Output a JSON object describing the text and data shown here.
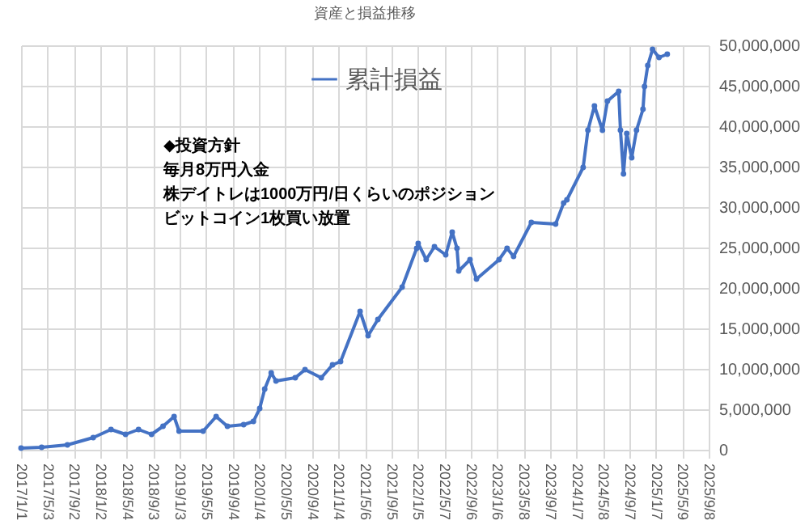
{
  "chart_data": {
    "type": "line",
    "title": "資産と損益推移",
    "annotations": [
      "◆投資方針",
      "毎月8万円入金",
      "株デイトレは1000万円/日くらいのポジション",
      "ビットコイン1枚買い放置"
    ],
    "x": [
      "2017-01-01",
      "2017-04-06",
      "2017-08-03",
      "2017-11-30",
      "2018-02-20",
      "2018-04-28",
      "2018-06-27",
      "2018-08-26",
      "2018-10-18",
      "2018-12-08",
      "2018-12-31",
      "2019-04-21",
      "2019-06-20",
      "2019-08-11",
      "2019-10-25",
      "2019-12-09",
      "2020-01-07",
      "2020-01-30",
      "2020-02-29",
      "2020-03-22",
      "2020-06-19",
      "2020-08-03",
      "2020-10-17",
      "2020-12-08",
      "2021-01-14",
      "2021-04-14",
      "2021-05-21",
      "2021-07-05",
      "2021-10-25",
      "2021-12-31",
      "2022-01-07",
      "2022-02-13",
      "2022-03-23",
      "2022-05-14",
      "2022-06-13",
      "2022-07-05",
      "2022-07-13",
      "2022-09-03",
      "2022-10-03",
      "2023-01-15",
      "2023-02-21",
      "2023-03-23",
      "2023-06-13",
      "2023-10-03",
      "2023-11-09",
      "2023-11-24",
      "2024-02-07",
      "2024-02-29",
      "2024-03-30",
      "2024-05-06",
      "2024-05-29",
      "2024-07-20",
      "2024-07-28",
      "2024-08-11",
      "2024-08-26",
      "2024-09-18",
      "2024-10-10",
      "2024-11-09",
      "2024-11-16",
      "2024-12-01",
      "2024-12-23",
      "2025-01-22",
      "2025-03-01"
    ],
    "series": [
      {
        "name": "累計損益",
        "color": "#4472c4",
        "values": [
          200000,
          300000,
          600000,
          1500000,
          2500000,
          1900000,
          2500000,
          1900000,
          2900000,
          4100000,
          2300000,
          2300000,
          4100000,
          2900000,
          3100000,
          3500000,
          5100000,
          7500000,
          9500000,
          8500000,
          8900000,
          9900000,
          8900000,
          10500000,
          10900000,
          17100000,
          14100000,
          16100000,
          20100000,
          24900000,
          25500000,
          23500000,
          25100000,
          24100000,
          26900000,
          24900000,
          22100000,
          23500000,
          21100000,
          23500000,
          24900000,
          23900000,
          28100000,
          27900000,
          30500000,
          30900000,
          34900000,
          39500000,
          42500000,
          39500000,
          43100000,
          44300000,
          39500000,
          34100000,
          39100000,
          36100000,
          39500000,
          42100000,
          44900000,
          47500000,
          49500000,
          48500000,
          48900000
        ]
      }
    ],
    "xlim": [
      "2017-01-01",
      "2025-09-08"
    ],
    "xticks": [
      {
        "value": "2017-01-01",
        "label": "2017/1/1"
      },
      {
        "value": "2017-05-03",
        "label": "2017/5/3"
      },
      {
        "value": "2017-09-02",
        "label": "2017/9/2"
      },
      {
        "value": "2018-01-02",
        "label": "2018/1/2"
      },
      {
        "value": "2018-05-04",
        "label": "2018/5/4"
      },
      {
        "value": "2018-09-03",
        "label": "2018/9/3"
      },
      {
        "value": "2019-01-03",
        "label": "2019/1/3"
      },
      {
        "value": "2019-05-05",
        "label": "2019/5/5"
      },
      {
        "value": "2019-09-04",
        "label": "2019/9/4"
      },
      {
        "value": "2020-01-04",
        "label": "2020/1/4"
      },
      {
        "value": "2020-05-05",
        "label": "2020/5/5"
      },
      {
        "value": "2020-09-04",
        "label": "2020/9/4"
      },
      {
        "value": "2021-01-04",
        "label": "2021/1/4"
      },
      {
        "value": "2021-05-06",
        "label": "2021/5/6"
      },
      {
        "value": "2021-09-05",
        "label": "2021/9/5"
      },
      {
        "value": "2022-01-05",
        "label": "2022/1/5"
      },
      {
        "value": "2022-05-07",
        "label": "2022/5/7"
      },
      {
        "value": "2022-09-06",
        "label": "2022/9/6"
      },
      {
        "value": "2023-01-06",
        "label": "2023/1/6"
      },
      {
        "value": "2023-05-08",
        "label": "2023/5/8"
      },
      {
        "value": "2023-09-07",
        "label": "2023/9/7"
      },
      {
        "value": "2024-01-07",
        "label": "2024/1/7"
      },
      {
        "value": "2024-05-08",
        "label": "2024/5/8"
      },
      {
        "value": "2024-09-07",
        "label": "2024/9/7"
      },
      {
        "value": "2025-01-07",
        "label": "2025/1/7"
      },
      {
        "value": "2025-05-09",
        "label": "2025/5/9"
      },
      {
        "value": "2025-09-08",
        "label": "2025/9/8"
      }
    ],
    "ylim": [
      0,
      50000000
    ],
    "yticks": [
      0,
      {
        "value": 5000000,
        "label": "5,000,000"
      },
      {
        "value": 10000000,
        "label": "10,000,000"
      },
      {
        "value": 15000000,
        "label": "15,000,000"
      },
      {
        "value": 20000000,
        "label": "20,000,000"
      },
      {
        "value": 25000000,
        "label": "25,000,000"
      },
      {
        "value": 30000000,
        "label": "30,000,000"
      },
      {
        "value": 35000000,
        "label": "35,000,000"
      },
      {
        "value": 40000000,
        "label": "40,000,000"
      },
      {
        "value": 45000000,
        "label": "45,000,000"
      },
      {
        "value": 50000000,
        "label": "50,000,000"
      }
    ],
    "grid": true,
    "legend": "top",
    "marker": "circle"
  }
}
